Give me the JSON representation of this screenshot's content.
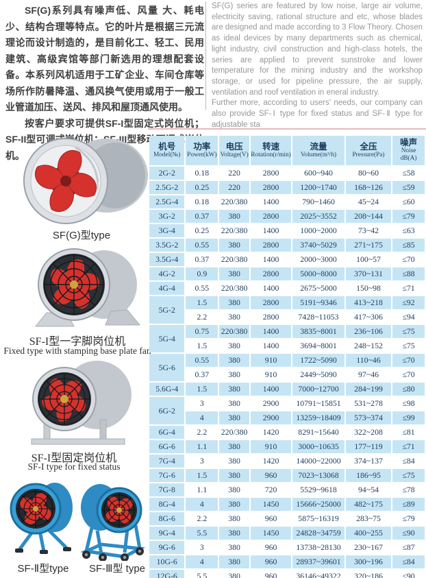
{
  "intro": {
    "cn_p1": "SF(G)系列具有噪声低、风量 大、耗电少、结构合理等特点。它的叶片是根据三元流理论而设计制造的，是目前化工、轻工、民用建筑、高级宾馆等部门新选用的理想配套设备。本系列风机适用于工矿企业、车间仓库等场所作防暑降温、通风换气使用或用于一般工业管道加压、送风、排风和屋顶通风使用。",
    "cn_p2": "按客户要求可提供SF-I型固定式岗位机；SF-II型可调式岗位机；SF-III型移动可调式岗位机。",
    "en_p1": "SF(G) series are featured by low noise, large air volume, electricity saving, rational structure and etc, whose blades are designed and made according to 3 Flow Theory. Chosen as ideal devices by many departments such as chemical, light industry, civil construction and high-class hotels, the series are applied to prevent sunstroke and lower temperature for the mining industry and the workshop storage, or used for pipeline pressure, the air supply, ventilation and roof ventilation in eneral industry.",
    "en_p2": "Further more, according to users' needs, our company can also provide SF-Ⅰ type for fixed status and SF-Ⅱ type for adjustable sta"
  },
  "figures": [
    {
      "caption_cn": "SF(G)型type"
    },
    {
      "caption_cn": "SF-I型一字脚岗位机",
      "caption_en": "Fixed type with stamping base plate fan"
    },
    {
      "caption_cn": "SF-I型固定岗位机",
      "caption_en": "SF-I  type for fixed status"
    },
    {
      "caption_cn": "SF-Ⅱ型type"
    },
    {
      "caption_cn": "SF-Ⅲ型 type"
    }
  ],
  "table": {
    "colors": {
      "cell_blue": "#c6e5f4",
      "text_navy": "#1c3d5e",
      "accent_red": "#d5322d",
      "fan_blue": "#2e8bc4"
    },
    "headers": [
      {
        "cn": "机号",
        "en": "Model(№)"
      },
      {
        "cn": "功率",
        "en": "Power(kW)"
      },
      {
        "cn": "电压",
        "en": "Voltage(V)"
      },
      {
        "cn": "转速",
        "en": "Rotation(r/min)"
      },
      {
        "cn": "流量",
        "en": "Volume(m³/h)"
      },
      {
        "cn": "全压",
        "en": "Pressure(Pa)"
      },
      {
        "cn": "噪声",
        "en": "Noise dB(A)"
      }
    ],
    "rows": [
      {
        "model": "2G-2",
        "rowspan": 1,
        "power": "0.18",
        "voltage": "220",
        "rotation": "2800",
        "volume": "600~940",
        "pressure": "80~60",
        "noise": "≤58"
      },
      {
        "model": "2.5G-2",
        "rowspan": 1,
        "power": "0.25",
        "voltage": "220",
        "rotation": "2800",
        "volume": "1200~1740",
        "pressure": "168~126",
        "noise": "≤59"
      },
      {
        "model": "2.5G-4",
        "rowspan": 1,
        "power": "0.18",
        "voltage": "220/380",
        "rotation": "1400",
        "volume": "790~1460",
        "pressure": "45~24",
        "noise": "≤60"
      },
      {
        "model": "3G-2",
        "rowspan": 1,
        "power": "0.37",
        "voltage": "380",
        "rotation": "2800",
        "volume": "2025~3552",
        "pressure": "208~144",
        "noise": "≤79"
      },
      {
        "model": "3G-4",
        "rowspan": 1,
        "power": "0.25",
        "voltage": "220/380",
        "rotation": "1400",
        "volume": "1000~2000",
        "pressure": "73~42",
        "noise": "≤63"
      },
      {
        "model": "3.5G-2",
        "rowspan": 1,
        "power": "0.55",
        "voltage": "380",
        "rotation": "2800",
        "volume": "3740~5029",
        "pressure": "271~175",
        "noise": "≤85"
      },
      {
        "model": "3.5G-4",
        "rowspan": 1,
        "power": "0.37",
        "voltage": "220/380",
        "rotation": "1400",
        "volume": "2000~3000",
        "pressure": "100~57",
        "noise": "≤70"
      },
      {
        "model": "4G-2",
        "rowspan": 1,
        "power": "0.9",
        "voltage": "380",
        "rotation": "2800",
        "volume": "5000~8000",
        "pressure": "370~131",
        "noise": "≤88"
      },
      {
        "model": "4G-4",
        "rowspan": 1,
        "power": "0.55",
        "voltage": "220/380",
        "rotation": "1400",
        "volume": "2675~5000",
        "pressure": "150~98",
        "noise": "≤71"
      },
      {
        "model": "5G-2",
        "rowspan": 2,
        "power": "1.5",
        "voltage": "380",
        "rotation": "2800",
        "volume": "5191~9346",
        "pressure": "413~218",
        "noise": "≤92"
      },
      {
        "model": null,
        "power": "2.2",
        "voltage": "380",
        "rotation": "2800",
        "volume": "7428~11053",
        "pressure": "417~306",
        "noise": "≤94"
      },
      {
        "model": "5G-4",
        "rowspan": 2,
        "power": "0.75",
        "voltage": "220/380",
        "rotation": "1400",
        "volume": "3835~8001",
        "pressure": "236~106",
        "noise": "≤75"
      },
      {
        "model": null,
        "power": "1.5",
        "voltage": "380",
        "rotation": "1400",
        "volume": "3694~8001",
        "pressure": "248~152",
        "noise": "≤75"
      },
      {
        "model": "5G-6",
        "rowspan": 2,
        "power": "0.55",
        "voltage": "380",
        "rotation": "910",
        "volume": "1722~5090",
        "pressure": "110~46",
        "noise": "≤70"
      },
      {
        "model": null,
        "power": "0.37",
        "voltage": "380",
        "rotation": "910",
        "volume": "2449~5090",
        "pressure": "97~46",
        "noise": "≤70"
      },
      {
        "model": "5.6G-4",
        "rowspan": 1,
        "power": "1.5",
        "voltage": "380",
        "rotation": "1400",
        "volume": "7000~12700",
        "pressure": "284~199",
        "noise": "≤80"
      },
      {
        "model": "6G-2",
        "rowspan": 2,
        "power": "3",
        "voltage": "380",
        "rotation": "2900",
        "volume": "10791~15851",
        "pressure": "531~278",
        "noise": "≤98"
      },
      {
        "model": null,
        "power": "4",
        "voltage": "380",
        "rotation": "2900",
        "volume": "13259~18409",
        "pressure": "573~374",
        "noise": "≤99"
      },
      {
        "model": "6G-4",
        "rowspan": 1,
        "power": "2.2",
        "voltage": "220/380",
        "rotation": "1420",
        "volume": "8291~15640",
        "pressure": "322~208",
        "noise": "≤81"
      },
      {
        "model": "6G-6",
        "rowspan": 1,
        "power": "1.1",
        "voltage": "380",
        "rotation": "910",
        "volume": "3000~10635",
        "pressure": "177~119",
        "noise": "≤71"
      },
      {
        "model": "7G-4",
        "rowspan": 1,
        "power": "3",
        "voltage": "380",
        "rotation": "1420",
        "volume": "14000~22000",
        "pressure": "374~137",
        "noise": "≤84"
      },
      {
        "model": "7G-6",
        "rowspan": 1,
        "power": "1.5",
        "voltage": "380",
        "rotation": "960",
        "volume": "7023~13068",
        "pressure": "186~95",
        "noise": "≤75"
      },
      {
        "model": "7G-8",
        "rowspan": 1,
        "power": "1.1",
        "voltage": "380",
        "rotation": "720",
        "volume": "5529~9618",
        "pressure": "94~54",
        "noise": "≤78"
      },
      {
        "model": "8G-4",
        "rowspan": 1,
        "power": "4",
        "voltage": "380",
        "rotation": "1450",
        "volume": "15666~25000",
        "pressure": "482~175",
        "noise": "≤89"
      },
      {
        "model": "8G-6",
        "rowspan": 1,
        "power": "2.2",
        "voltage": "380",
        "rotation": "960",
        "volume": "5875~16319",
        "pressure": "283~75",
        "noise": "≤79"
      },
      {
        "model": "9G-4",
        "rowspan": 1,
        "power": "5.5",
        "voltage": "380",
        "rotation": "1450",
        "volume": "24828~34759",
        "pressure": "400~255",
        "noise": "≤90"
      },
      {
        "model": "9G-6",
        "rowspan": 1,
        "power": "3",
        "voltage": "380",
        "rotation": "960",
        "volume": "13738~28130",
        "pressure": "230~167",
        "noise": "≤87"
      },
      {
        "model": "10G-6",
        "rowspan": 1,
        "power": "4",
        "voltage": "380",
        "rotation": "960",
        "volume": "28937~39601",
        "pressure": "300~196",
        "noise": "≤84"
      },
      {
        "model": "12G-6",
        "rowspan": 1,
        "power": "5.5",
        "voltage": "380",
        "rotation": "960",
        "volume": "36146~49322",
        "pressure": "320~186",
        "noise": "≤90"
      }
    ]
  }
}
